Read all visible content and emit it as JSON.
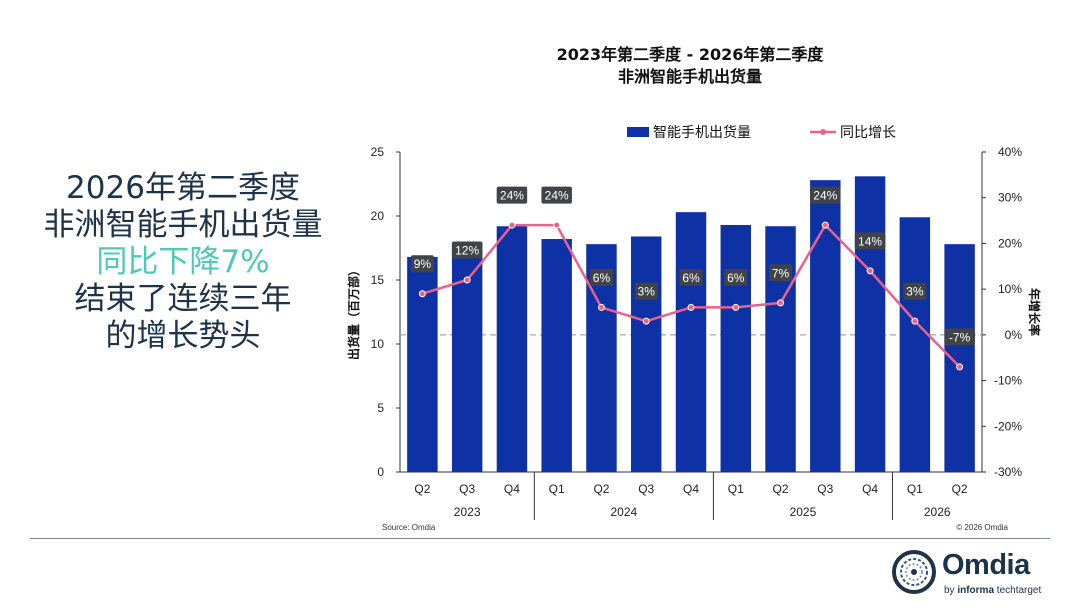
{
  "headline": {
    "line1": "2026年第二季度",
    "line2": "非洲智能手机出货量",
    "line3": "同比下降7%",
    "line4": "结束了连续三年",
    "line5": "的增长势头"
  },
  "colors": {
    "bar": "#0f31a6",
    "line": "#e8628c",
    "accent": "#4ec9b4",
    "navy": "#1e3348"
  },
  "logo": {
    "name": "Omdia",
    "sub_prefix": "by",
    "sub_brand": "informa",
    "sub_rest": "techtarget"
  },
  "chart_data": {
    "type": "bar",
    "title": "2023年第二季度 - 2026年第二季度",
    "subtitle": "非洲智能手机出货量",
    "ylabel": "出货量（百万部）",
    "y2label": "年增长率",
    "ylim": [
      0,
      25
    ],
    "yticks": [
      0,
      5,
      10,
      15,
      20,
      25
    ],
    "y2lim": [
      -30,
      40
    ],
    "y2ticks": [
      "-30%",
      "-20%",
      "-10%",
      "0%",
      "10%",
      "20%",
      "30%",
      "40%"
    ],
    "legend_position": "top",
    "categories": [
      "Q2",
      "Q3",
      "Q4",
      "Q1",
      "Q2",
      "Q3",
      "Q4",
      "Q1",
      "Q2",
      "Q3",
      "Q4",
      "Q1",
      "Q2"
    ],
    "years": [
      {
        "label": "2023",
        "count": 3
      },
      {
        "label": "2024",
        "count": 4
      },
      {
        "label": "2025",
        "count": 4
      },
      {
        "label": "2026",
        "count": 2
      }
    ],
    "series": [
      {
        "name": "智能手机出货量",
        "type": "bar",
        "values": [
          16.8,
          17.9,
          19.2,
          18.2,
          17.8,
          18.4,
          20.3,
          19.3,
          19.2,
          22.8,
          23.1,
          19.9,
          17.8
        ]
      },
      {
        "name": "同比增长",
        "type": "line",
        "values": [
          9,
          12,
          24,
          24,
          6,
          3,
          6,
          6,
          7,
          24,
          14,
          3,
          -7
        ],
        "labels": [
          "9%",
          "12%",
          "24%",
          "24%",
          "6%",
          "3%",
          "6%",
          "6%",
          "7%",
          "24%",
          "14%",
          "3%",
          "-7%"
        ]
      }
    ],
    "source": "Source: Omdia",
    "copyright": "© 2026 Omdia"
  }
}
